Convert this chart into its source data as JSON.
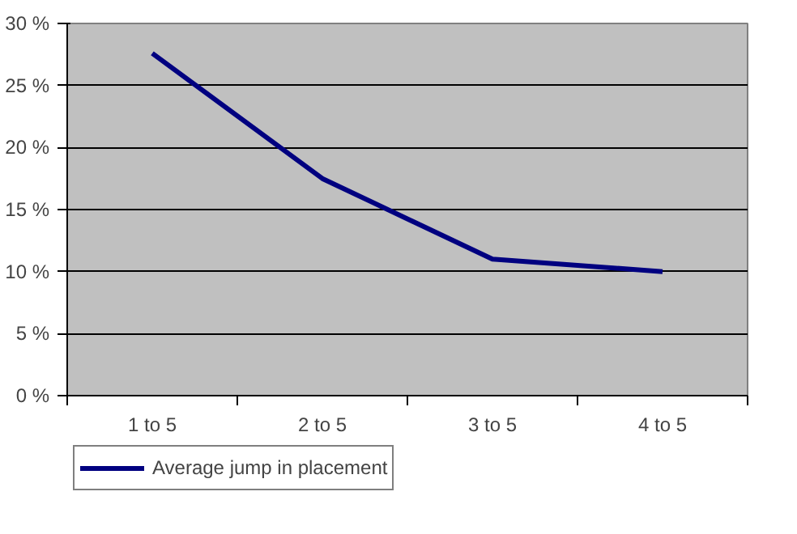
{
  "chart_data": {
    "type": "line",
    "categories": [
      "1 to 5",
      "2 to 5",
      "3 to 5",
      "4 to 5"
    ],
    "series": [
      {
        "name": "Average jump in placement",
        "color": "#000080",
        "values": [
          27.6,
          17.5,
          11.0,
          10.0
        ]
      }
    ],
    "ylim": [
      0,
      30
    ],
    "yticks": [
      {
        "value": 0,
        "label": "0 %"
      },
      {
        "value": 5,
        "label": "5 %"
      },
      {
        "value": 10,
        "label": "10 %"
      },
      {
        "value": 15,
        "label": "15 %"
      },
      {
        "value": 20,
        "label": "20 %"
      },
      {
        "value": 25,
        "label": "25 %"
      },
      {
        "value": 30,
        "label": "30 %"
      }
    ],
    "grid": "y",
    "legend": "bottom left",
    "marker": "none",
    "line_style": "solid"
  }
}
